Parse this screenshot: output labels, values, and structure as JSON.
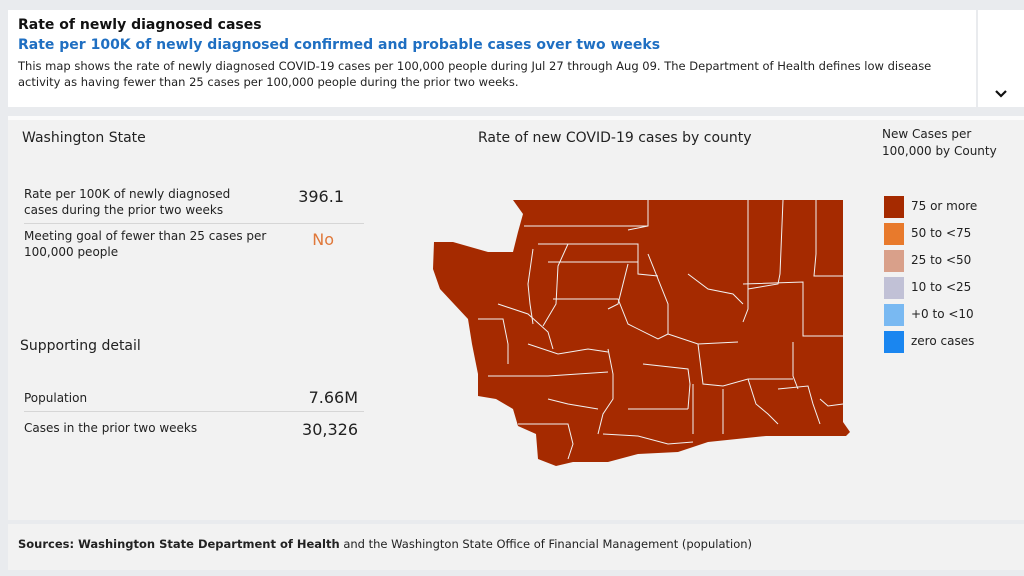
{
  "header": {
    "title": "Rate of newly diagnosed cases",
    "subtitle": "Rate per 100K of newly diagnosed confirmed and probable cases over two weeks",
    "description": "This map shows the rate of newly diagnosed COVID-19 cases per 100,000 people during Jul 27 through Aug 09. The Department of Health defines low disease activity as having fewer than 25 cases per 100,000 people during the prior two weeks."
  },
  "state": {
    "title": "Washington State",
    "rate_label": "Rate per 100K of newly diagnosed cases during the prior two weeks",
    "rate_value": "396.1",
    "goal_label": "Meeting goal of fewer than 25 cases per 100,000 people",
    "goal_value": "No"
  },
  "support": {
    "title": "Supporting detail",
    "population_label": "Population",
    "population_value": "7.66M",
    "cases_label": "Cases in the prior two weeks",
    "cases_value": "30,326"
  },
  "map": {
    "title": "Rate of new COVID-19 cases by county",
    "fill_color": "#a52a00",
    "border_color": "#f2f2f2",
    "all_counties_category": "75 or more"
  },
  "legend": {
    "title_line1": "New Cases per",
    "title_line2": "100,000 by County",
    "items": [
      {
        "label": "75 or more",
        "color": "#a52a00"
      },
      {
        "label": "50 to <75",
        "color": "#e87a2c"
      },
      {
        "label": "25 to <50",
        "color": "#d9a08a"
      },
      {
        "label": "10 to <25",
        "color": "#c1c1d6"
      },
      {
        "label": "+0 to <10",
        "color": "#79b9f2"
      },
      {
        "label": "zero cases",
        "color": "#1a86f0"
      }
    ]
  },
  "footer": {
    "sources_label": "Sources: Washington State Department of Health",
    "sources_rest": " and the Washington State Office of Financial Management (population)"
  }
}
